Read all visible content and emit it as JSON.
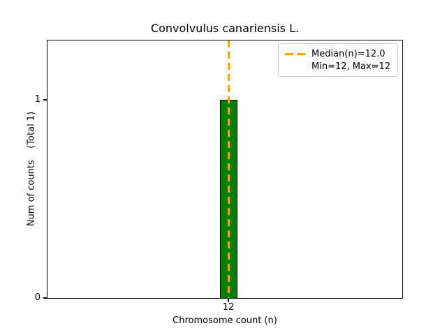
{
  "title": "Convolvulus canariensis L.",
  "axis": {
    "xlabel": "Chromosome count (n)",
    "ylabel": "Num of counts    (Total 1)",
    "ytick_1": "1",
    "ytick_0": "0",
    "xtick_12": "12"
  },
  "legend": {
    "median_label": "Median(n)=12.0",
    "minmax_label": "Min=12, Max=12"
  },
  "colors": {
    "bar_fill": "#008000",
    "bar_edge": "#000000",
    "median_line": "#ffa500",
    "legend_border": "#cccccc",
    "spine": "#000000",
    "background": "#ffffff"
  },
  "chart_data": {
    "type": "bar",
    "title": "Convolvulus canariensis L.",
    "xlabel": "Chromosome count (n)",
    "ylabel": "Num of counts    (Total 1)",
    "categories": [
      12
    ],
    "values": [
      1
    ],
    "total_counts": 1,
    "xticks": [
      12
    ],
    "yticks": [
      0,
      1
    ],
    "ylim": [
      0,
      1.3
    ],
    "grid": false,
    "bar_color": "#008000",
    "bar_edge_color": "#000000",
    "median_line": {
      "value": 12.0,
      "orientation": "vertical",
      "style": "dashed",
      "color": "#ffa500"
    },
    "stats": {
      "median": 12.0,
      "min": 12,
      "max": 12
    },
    "legend": {
      "position": "upper right",
      "entries": [
        "Median(n)=12.0",
        "Min=12, Max=12"
      ]
    }
  }
}
